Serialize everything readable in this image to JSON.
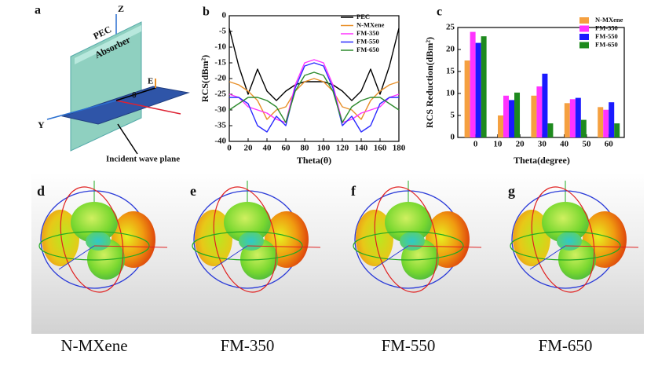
{
  "chart_data": [
    {
      "type": "line",
      "label": "b",
      "xlabel": "Theta(θ)",
      "ylabel": "RCS(dBm²)",
      "x": [
        0,
        10,
        20,
        30,
        40,
        50,
        60,
        70,
        80,
        90,
        100,
        110,
        120,
        130,
        140,
        150,
        160,
        170,
        180
      ],
      "xlim": [
        0,
        180
      ],
      "xticks": [
        0,
        20,
        40,
        60,
        80,
        100,
        120,
        140,
        160,
        180
      ],
      "ylim": [
        -40,
        0
      ],
      "yticks": [
        -40,
        -35,
        -30,
        -25,
        -20,
        -15,
        -10,
        -5,
        0
      ],
      "legend": "upper right",
      "series": [
        {
          "name": "PEC",
          "color": "#000000",
          "values": [
            -4,
            -16,
            -25,
            -17,
            -24,
            -27,
            -24,
            -22,
            -21,
            -21,
            -21,
            -22,
            -24,
            -27,
            -24,
            -17,
            -25,
            -16,
            -4
          ]
        },
        {
          "name": "N-MXene",
          "color": "#e8902a",
          "values": [
            -21,
            -22,
            -24,
            -27,
            -33,
            -30,
            -29,
            -24,
            -21,
            -20,
            -21,
            -24,
            -29,
            -30,
            -33,
            -27,
            -24,
            -22,
            -21
          ]
        },
        {
          "name": "FM-350",
          "color": "#ff33ff",
          "values": [
            -25,
            -26,
            -29,
            -30,
            -31,
            -33,
            -34,
            -22,
            -15,
            -14,
            -15,
            -22,
            -34,
            -33,
            -31,
            -30,
            -29,
            -26,
            -25
          ]
        },
        {
          "name": "FM-550",
          "color": "#2b2bff",
          "values": [
            -26,
            -26,
            -28,
            -35,
            -37,
            -32,
            -35,
            -23,
            -16,
            -15,
            -16,
            -23,
            -35,
            -32,
            -37,
            -35,
            -28,
            -26,
            -26
          ]
        },
        {
          "name": "FM-650",
          "color": "#2e8b2e",
          "values": [
            -30,
            -28,
            -26,
            -26,
            -27,
            -29,
            -34,
            -24,
            -19,
            -18,
            -19,
            -24,
            -34,
            -29,
            -27,
            -26,
            -26,
            -28,
            -30
          ]
        }
      ]
    },
    {
      "type": "bar",
      "label": "c",
      "xlabel": "Theta(degree)",
      "ylabel": "RCS Reduction(dBm²)",
      "x": [
        0,
        15,
        30,
        45,
        60
      ],
      "xlim": [
        -8,
        67
      ],
      "xticks": [
        0,
        10,
        20,
        30,
        40,
        50,
        60
      ],
      "ylim": [
        0,
        25
      ],
      "yticks": [
        0,
        5,
        10,
        15,
        20,
        25
      ],
      "legend": "upper right",
      "series": [
        {
          "name": "N-MXene",
          "color": "#f5a040",
          "values": [
            17.5,
            5,
            9.5,
            7.8,
            6.9
          ]
        },
        {
          "name": "FM-350",
          "color": "#ff33ff",
          "values": [
            24,
            9.5,
            11.6,
            8.7,
            6.3
          ]
        },
        {
          "name": "FM-550",
          "color": "#1a1aff",
          "values": [
            21.5,
            8.5,
            14.5,
            9,
            8
          ]
        },
        {
          "name": "FM-650",
          "color": "#1e8a1e",
          "values": [
            23,
            10.2,
            3.2,
            4,
            3.2
          ]
        }
      ]
    }
  ],
  "diagram": {
    "label": "a",
    "z": "Z",
    "pec": "PEC",
    "absorber": "Absorber",
    "e": "E",
    "theta": "θ",
    "y": "Y",
    "incident": "Incident wave plane"
  },
  "patterns": [
    {
      "label": "d",
      "name": "N-MXene"
    },
    {
      "label": "e",
      "name": "FM-350"
    },
    {
      "label": "f",
      "name": "FM-550"
    },
    {
      "label": "g",
      "name": "FM-650"
    }
  ]
}
